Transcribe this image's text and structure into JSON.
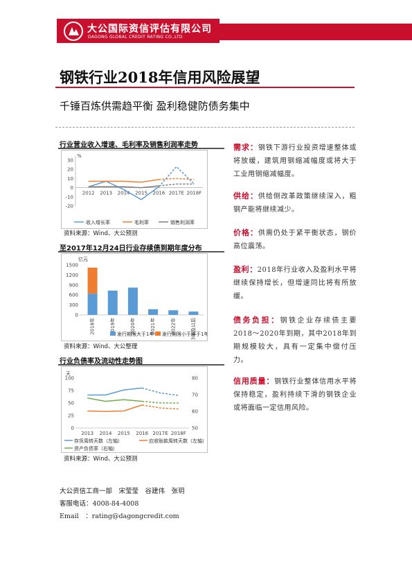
{
  "header": {
    "company_cn": "大公国际资信评估有限公司",
    "company_en": "DAGONG GLOBAL CREDIT RATING CO.,LTD"
  },
  "title": "钢铁行业2018年信用风险展望",
  "subtitle": "千锤百炼供需趋平衡 盈利稳健防债务集中",
  "chart1": {
    "heading": "行业营业收入增速、毛利率及销售利润率走势",
    "source": "资料来源：Wind、大公预测",
    "unit": "%",
    "y_ticks": [
      "30",
      "20",
      "10",
      "0",
      "-10",
      "-20"
    ],
    "legend": [
      "收入增长率",
      "毛利率",
      "销售利润率"
    ]
  },
  "chart2": {
    "heading": "至2017年12月24日行业存续债到期年度分布",
    "source": "资料来源：Wind、大公整理",
    "unit": "亿元",
    "y_ticks": [
      "1500",
      "1200",
      "900",
      "600",
      "300",
      "0"
    ],
    "legend": [
      "发行期限大于1年",
      "发行期限小于等于1年"
    ]
  },
  "chart3": {
    "heading": "行业负债率及流动性走势图",
    "source": "资料来源：Wind、大公预测",
    "unit": "天",
    "y_ticks_left": [
      "100",
      "75",
      "50",
      "25",
      "0"
    ],
    "y_ticks_right": [
      "80",
      "70",
      "60",
      "50"
    ],
    "legend": [
      "存货周转天数（左轴）",
      "应收账款周转天数（左轴）",
      "资产负债率（右轴）"
    ]
  },
  "chart_data": [
    {
      "type": "line",
      "categories": [
        "2012",
        "2013",
        "2014",
        "2015",
        "2016",
        "2017E",
        "2018F"
      ],
      "series": [
        {
          "name": "收入增长率",
          "values": [
            1,
            7,
            -2,
            -13,
            1,
            23,
            4
          ],
          "color": "#5b9bd5"
        },
        {
          "name": "毛利率",
          "values": [
            7,
            7,
            7,
            6,
            9,
            10,
            9
          ],
          "color": "#ed7d31"
        },
        {
          "name": "销售利润率",
          "values": [
            1,
            1,
            1,
            0,
            2,
            4,
            4
          ],
          "color": "#7f7f7f"
        }
      ],
      "forecast_from_index": 5,
      "ylim": [
        -20,
        30
      ]
    },
    {
      "type": "bar",
      "categories": [
        "2018年",
        "2019年",
        "2020年",
        "2021年",
        "2022年",
        "2023年及以后"
      ],
      "series": [
        {
          "name": "发行期限大于1年",
          "values": [
            640,
            730,
            820,
            170,
            140,
            100
          ],
          "color": "#5b9bd5"
        },
        {
          "name": "发行期限小于等于1年",
          "values": [
            780,
            0,
            0,
            0,
            0,
            0
          ],
          "color": "#ed7d31"
        }
      ],
      "stacked": true,
      "ylim": [
        0,
        1500
      ]
    },
    {
      "type": "line",
      "categories": [
        "2013",
        "2014",
        "2015",
        "2016",
        "2017E",
        "2018F"
      ],
      "series": [
        {
          "name": "存货周转天数（左轴）",
          "values": [
            66,
            66,
            76,
            80,
            70,
            65
          ],
          "color": "#5b9bd5",
          "axis": "left"
        },
        {
          "name": "应收账款周转天数（左轴）",
          "values": [
            34,
            33,
            34,
            46,
            40,
            38
          ],
          "color": "#ed7d31",
          "axis": "left"
        },
        {
          "name": "资产负债率（右轴）",
          "values": [
            68,
            66,
            67,
            66,
            65,
            65
          ],
          "color": "#70ad47",
          "axis": "right"
        }
      ],
      "forecast_from_index": 4,
      "ylim_left": [
        0,
        100
      ],
      "ylim_right": [
        50,
        80
      ]
    }
  ],
  "sections": [
    {
      "head": "需求：",
      "text": "钢铁下游行业投资增速整体或将放缓，建筑用钢缩减幅度或将大于工业用钢缩减幅度。"
    },
    {
      "head": "供给：",
      "text": "供给侧改革政策继续深入，粗钢产能将继续减少。"
    },
    {
      "head": "价格：",
      "text": "供需仍处于紧平衡状态，钢价高位震荡。"
    },
    {
      "head": "盈利：",
      "text": "2018年行业收入及盈利水平将继续保持增长，但增速同比将有所放缓。"
    },
    {
      "head": "债务负担：",
      "text": "钢铁企业存续债主要2018～2020年到期，其中2018年到期规模较大，具有一定集中偿付压力。"
    },
    {
      "head": "信用质量：",
      "text": "钢铁行业整体信用水平将保持稳定，盈利持续下滑的钢铁企业或将面临一定信用风险。"
    }
  ],
  "footer": {
    "team": "大公资信工商一部　宋莹莹　谷建伟　张玥",
    "phone": "客服电话：4008-84-4008",
    "email": "Email　：rating@dagongcredit.com"
  }
}
